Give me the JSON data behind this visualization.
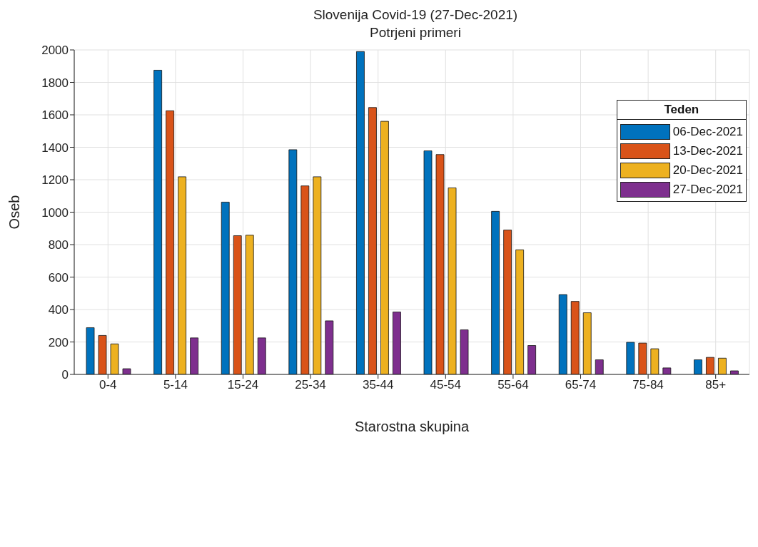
{
  "chart_data": {
    "type": "bar",
    "title": "Slovenija Covid-19 (27-Dec-2021)",
    "subtitle": "Potrjeni primeri",
    "xlabel": "Starostna skupina",
    "ylabel": "Oseb",
    "legend_title": "Teden",
    "categories": [
      "0-4",
      "5-14",
      "15-24",
      "25-34",
      "35-44",
      "45-54",
      "55-64",
      "65-74",
      "75-84",
      "85+"
    ],
    "series": [
      {
        "name": "06-Dec-2021",
        "color": "#0072bd",
        "values": [
          288,
          1875,
          1062,
          1385,
          1990,
          1378,
          1005,
          492,
          198,
          90
        ]
      },
      {
        "name": "13-Dec-2021",
        "color": "#d95319",
        "values": [
          240,
          1625,
          855,
          1162,
          1645,
          1355,
          890,
          450,
          193,
          105
        ]
      },
      {
        "name": "20-Dec-2021",
        "color": "#edb120",
        "values": [
          188,
          1218,
          858,
          1218,
          1560,
          1150,
          768,
          380,
          158,
          100
        ]
      },
      {
        "name": "27-Dec-2021",
        "color": "#7e2f8e",
        "values": [
          35,
          225,
          225,
          330,
          385,
          275,
          178,
          90,
          40,
          22
        ]
      }
    ],
    "ylim": [
      0,
      2000
    ],
    "yticks": [
      0,
      200,
      400,
      600,
      800,
      1000,
      1200,
      1400,
      1600,
      1800,
      2000
    ],
    "grid": true,
    "legend": "top right"
  }
}
